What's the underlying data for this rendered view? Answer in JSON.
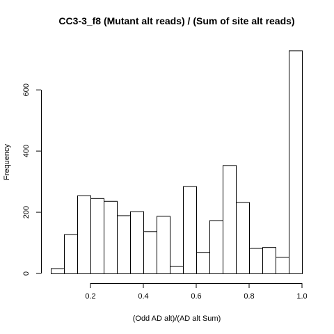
{
  "chart_data": {
    "type": "bar",
    "title": "CC3-3_f8 (Mutant alt reads) / (Sum of site alt reads)",
    "xlabel": "(Odd AD alt)/(AD alt Sum)",
    "ylabel": "Frequency",
    "xlim": [
      0.05,
      1.0
    ],
    "ylim": [
      0,
      730
    ],
    "bin_width": 0.05,
    "bin_starts": [
      0.05,
      0.1,
      0.15,
      0.2,
      0.25,
      0.3,
      0.35,
      0.4,
      0.45,
      0.5,
      0.55,
      0.6,
      0.65,
      0.7,
      0.75,
      0.8,
      0.85,
      0.9,
      0.95
    ],
    "values": [
      17,
      128,
      255,
      246,
      237,
      190,
      203,
      138,
      188,
      25,
      285,
      70,
      174,
      354,
      233,
      83,
      86,
      54,
      729
    ],
    "x_ticks": [
      0.2,
      0.4,
      0.6,
      0.8,
      1.0
    ],
    "x_tick_labels": [
      "0.2",
      "0.4",
      "0.6",
      "0.8",
      "1.0"
    ],
    "y_ticks": [
      0,
      200,
      400,
      600
    ],
    "y_tick_labels": [
      "0",
      "200",
      "400",
      "600"
    ],
    "grid": false,
    "bar_fill": "#ffffff",
    "bar_stroke": "#000000"
  }
}
